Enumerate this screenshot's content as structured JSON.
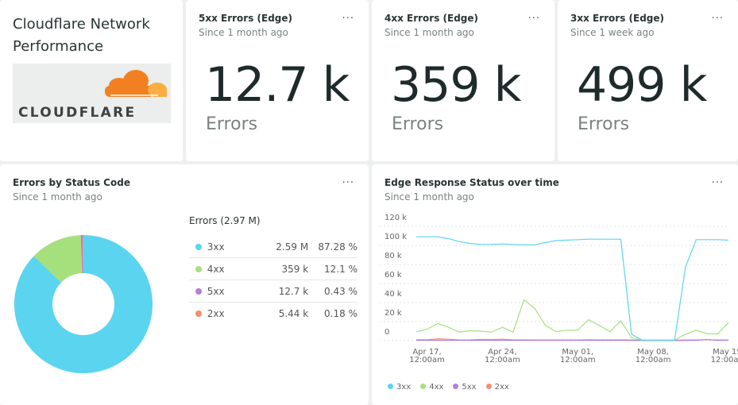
{
  "header": {
    "title": "Cloudflare Network Performance",
    "logo_text": "CLOUDFLARE"
  },
  "widgets": [
    {
      "title": "5xx Errors (Edge)",
      "subtitle": "Since 1 month ago",
      "value": "12.7 k",
      "unit": "Errors",
      "menu": "..."
    },
    {
      "title": "4xx Errors (Edge)",
      "subtitle": "Since 1 month ago",
      "value": "359 k",
      "unit": "Errors",
      "menu": "..."
    },
    {
      "title": "3xx Errors (Edge)",
      "subtitle": "Since 1 week ago",
      "value": "499 k",
      "unit": "Errors",
      "menu": "..."
    }
  ],
  "colors": {
    "3xx": "#5bd5ef",
    "4xx": "#a6e07c",
    "5xx": "#b57ed6",
    "2xx": "#f58d6e"
  },
  "chart_data": [
    {
      "type": "pie",
      "title": "Errors by Status Code",
      "subtitle": "Since 1 month ago",
      "menu": "...",
      "donut": true,
      "legend_title": "Errors (2.97 M)",
      "slices": [
        {
          "name": "3xx",
          "value": "2.59 M",
          "percent": 87.28,
          "percent_label": "87.28 %"
        },
        {
          "name": "4xx",
          "value": "359 k",
          "percent": 12.1,
          "percent_label": "12.1 %"
        },
        {
          "name": "5xx",
          "value": "12.7 k",
          "percent": 0.43,
          "percent_label": "0.43 %"
        },
        {
          "name": "2xx",
          "value": "5.44 k",
          "percent": 0.18,
          "percent_label": "0.18 %"
        }
      ]
    },
    {
      "type": "line",
      "title": "Edge Response Status over time",
      "subtitle": "Since 1 month ago",
      "menu": "...",
      "ylim": [
        0,
        120000
      ],
      "yticks": [
        "0",
        "20 k",
        "40 k",
        "60 k",
        "80 k",
        "100 k",
        "120 k"
      ],
      "grid": true,
      "xticks": [
        {
          "line1": "Apr 17,",
          "line2": "12:00am"
        },
        {
          "line1": "Apr 24,",
          "line2": "12:00am"
        },
        {
          "line1": "May 01,",
          "line2": "12:00am"
        },
        {
          "line1": "May 08,",
          "line2": "12:00am"
        },
        {
          "line1": "May 15,",
          "line2": "12:00am"
        }
      ],
      "x": [
        "Apr 16",
        "Apr 17",
        "Apr 18",
        "Apr 19",
        "Apr 20",
        "Apr 21",
        "Apr 22",
        "Apr 23",
        "Apr 24",
        "Apr 25",
        "Apr 26",
        "Apr 27",
        "Apr 28",
        "Apr 29",
        "Apr 30",
        "May 01",
        "May 02",
        "May 03",
        "May 04",
        "May 05",
        "May 06",
        "May 07",
        "May 08",
        "May 09",
        "May 10",
        "May 11",
        "May 12",
        "May 13",
        "May 14",
        "May 15"
      ],
      "legend_position": "bottom",
      "series": [
        {
          "name": "3xx",
          "values": [
            109000,
            109000,
            109000,
            107000,
            104000,
            102000,
            101000,
            101000,
            101500,
            101000,
            100500,
            100500,
            103000,
            105000,
            105500,
            106000,
            106500,
            106500,
            106500,
            106500,
            6700,
            500,
            500,
            500,
            500,
            77000,
            106000,
            106000,
            106000,
            105500
          ]
        },
        {
          "name": "4xx",
          "values": [
            9400,
            12000,
            18000,
            14000,
            9000,
            10500,
            10000,
            9000,
            14000,
            9000,
            43000,
            34000,
            16000,
            9400,
            11000,
            11000,
            22000,
            16000,
            9400,
            21000,
            3000,
            500,
            500,
            500,
            500,
            6700,
            11000,
            7500,
            7000,
            19000
          ]
        },
        {
          "name": "5xx",
          "values": [
            400,
            400,
            500,
            400,
            400,
            400,
            400,
            400,
            400,
            400,
            400,
            400,
            400,
            400,
            400,
            400,
            400,
            400,
            400,
            400,
            300,
            200,
            200,
            200,
            200,
            300,
            400,
            1200,
            400,
            400
          ]
        },
        {
          "name": "2xx",
          "values": [
            1000,
            1000,
            2000,
            1500,
            800,
            900,
            1300,
            1200,
            1500,
            900,
            900,
            800,
            800,
            800,
            800,
            800,
            1000,
            900,
            900,
            900,
            700,
            500,
            500,
            500,
            500,
            700,
            800,
            1000,
            800,
            800
          ]
        }
      ]
    }
  ]
}
